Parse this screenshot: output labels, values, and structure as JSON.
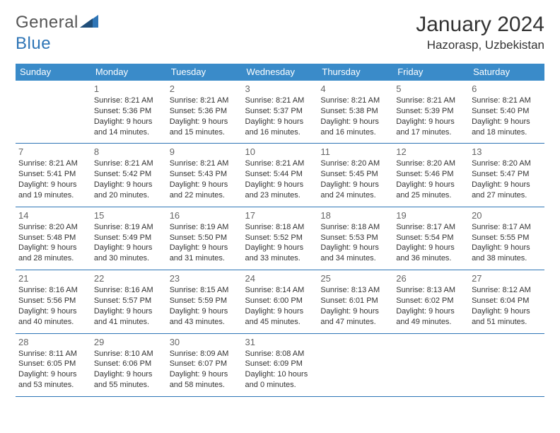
{
  "brand": {
    "part1": "General",
    "part2": "Blue"
  },
  "title": "January 2024",
  "location": "Hazorasp, Uzbekistan",
  "colors": {
    "header_bg": "#3a8bc9",
    "header_text": "#ffffff",
    "row_border": "#2e75b6",
    "body_bg": "#ffffff",
    "text": "#333333",
    "daynum": "#666666",
    "logo_gray": "#555555",
    "logo_blue": "#2e75b6"
  },
  "typography": {
    "title_fontsize": 30,
    "location_fontsize": 17,
    "dayheader_fontsize": 13,
    "daynum_fontsize": 13,
    "info_fontsize": 11
  },
  "day_headers": [
    "Sunday",
    "Monday",
    "Tuesday",
    "Wednesday",
    "Thursday",
    "Friday",
    "Saturday"
  ],
  "weeks": [
    [
      null,
      {
        "n": "1",
        "sr": "Sunrise: 8:21 AM",
        "ss": "Sunset: 5:36 PM",
        "d1": "Daylight: 9 hours",
        "d2": "and 14 minutes."
      },
      {
        "n": "2",
        "sr": "Sunrise: 8:21 AM",
        "ss": "Sunset: 5:36 PM",
        "d1": "Daylight: 9 hours",
        "d2": "and 15 minutes."
      },
      {
        "n": "3",
        "sr": "Sunrise: 8:21 AM",
        "ss": "Sunset: 5:37 PM",
        "d1": "Daylight: 9 hours",
        "d2": "and 16 minutes."
      },
      {
        "n": "4",
        "sr": "Sunrise: 8:21 AM",
        "ss": "Sunset: 5:38 PM",
        "d1": "Daylight: 9 hours",
        "d2": "and 16 minutes."
      },
      {
        "n": "5",
        "sr": "Sunrise: 8:21 AM",
        "ss": "Sunset: 5:39 PM",
        "d1": "Daylight: 9 hours",
        "d2": "and 17 minutes."
      },
      {
        "n": "6",
        "sr": "Sunrise: 8:21 AM",
        "ss": "Sunset: 5:40 PM",
        "d1": "Daylight: 9 hours",
        "d2": "and 18 minutes."
      }
    ],
    [
      {
        "n": "7",
        "sr": "Sunrise: 8:21 AM",
        "ss": "Sunset: 5:41 PM",
        "d1": "Daylight: 9 hours",
        "d2": "and 19 minutes."
      },
      {
        "n": "8",
        "sr": "Sunrise: 8:21 AM",
        "ss": "Sunset: 5:42 PM",
        "d1": "Daylight: 9 hours",
        "d2": "and 20 minutes."
      },
      {
        "n": "9",
        "sr": "Sunrise: 8:21 AM",
        "ss": "Sunset: 5:43 PM",
        "d1": "Daylight: 9 hours",
        "d2": "and 22 minutes."
      },
      {
        "n": "10",
        "sr": "Sunrise: 8:21 AM",
        "ss": "Sunset: 5:44 PM",
        "d1": "Daylight: 9 hours",
        "d2": "and 23 minutes."
      },
      {
        "n": "11",
        "sr": "Sunrise: 8:20 AM",
        "ss": "Sunset: 5:45 PM",
        "d1": "Daylight: 9 hours",
        "d2": "and 24 minutes."
      },
      {
        "n": "12",
        "sr": "Sunrise: 8:20 AM",
        "ss": "Sunset: 5:46 PM",
        "d1": "Daylight: 9 hours",
        "d2": "and 25 minutes."
      },
      {
        "n": "13",
        "sr": "Sunrise: 8:20 AM",
        "ss": "Sunset: 5:47 PM",
        "d1": "Daylight: 9 hours",
        "d2": "and 27 minutes."
      }
    ],
    [
      {
        "n": "14",
        "sr": "Sunrise: 8:20 AM",
        "ss": "Sunset: 5:48 PM",
        "d1": "Daylight: 9 hours",
        "d2": "and 28 minutes."
      },
      {
        "n": "15",
        "sr": "Sunrise: 8:19 AM",
        "ss": "Sunset: 5:49 PM",
        "d1": "Daylight: 9 hours",
        "d2": "and 30 minutes."
      },
      {
        "n": "16",
        "sr": "Sunrise: 8:19 AM",
        "ss": "Sunset: 5:50 PM",
        "d1": "Daylight: 9 hours",
        "d2": "and 31 minutes."
      },
      {
        "n": "17",
        "sr": "Sunrise: 8:18 AM",
        "ss": "Sunset: 5:52 PM",
        "d1": "Daylight: 9 hours",
        "d2": "and 33 minutes."
      },
      {
        "n": "18",
        "sr": "Sunrise: 8:18 AM",
        "ss": "Sunset: 5:53 PM",
        "d1": "Daylight: 9 hours",
        "d2": "and 34 minutes."
      },
      {
        "n": "19",
        "sr": "Sunrise: 8:17 AM",
        "ss": "Sunset: 5:54 PM",
        "d1": "Daylight: 9 hours",
        "d2": "and 36 minutes."
      },
      {
        "n": "20",
        "sr": "Sunrise: 8:17 AM",
        "ss": "Sunset: 5:55 PM",
        "d1": "Daylight: 9 hours",
        "d2": "and 38 minutes."
      }
    ],
    [
      {
        "n": "21",
        "sr": "Sunrise: 8:16 AM",
        "ss": "Sunset: 5:56 PM",
        "d1": "Daylight: 9 hours",
        "d2": "and 40 minutes."
      },
      {
        "n": "22",
        "sr": "Sunrise: 8:16 AM",
        "ss": "Sunset: 5:57 PM",
        "d1": "Daylight: 9 hours",
        "d2": "and 41 minutes."
      },
      {
        "n": "23",
        "sr": "Sunrise: 8:15 AM",
        "ss": "Sunset: 5:59 PM",
        "d1": "Daylight: 9 hours",
        "d2": "and 43 minutes."
      },
      {
        "n": "24",
        "sr": "Sunrise: 8:14 AM",
        "ss": "Sunset: 6:00 PM",
        "d1": "Daylight: 9 hours",
        "d2": "and 45 minutes."
      },
      {
        "n": "25",
        "sr": "Sunrise: 8:13 AM",
        "ss": "Sunset: 6:01 PM",
        "d1": "Daylight: 9 hours",
        "d2": "and 47 minutes."
      },
      {
        "n": "26",
        "sr": "Sunrise: 8:13 AM",
        "ss": "Sunset: 6:02 PM",
        "d1": "Daylight: 9 hours",
        "d2": "and 49 minutes."
      },
      {
        "n": "27",
        "sr": "Sunrise: 8:12 AM",
        "ss": "Sunset: 6:04 PM",
        "d1": "Daylight: 9 hours",
        "d2": "and 51 minutes."
      }
    ],
    [
      {
        "n": "28",
        "sr": "Sunrise: 8:11 AM",
        "ss": "Sunset: 6:05 PM",
        "d1": "Daylight: 9 hours",
        "d2": "and 53 minutes."
      },
      {
        "n": "29",
        "sr": "Sunrise: 8:10 AM",
        "ss": "Sunset: 6:06 PM",
        "d1": "Daylight: 9 hours",
        "d2": "and 55 minutes."
      },
      {
        "n": "30",
        "sr": "Sunrise: 8:09 AM",
        "ss": "Sunset: 6:07 PM",
        "d1": "Daylight: 9 hours",
        "d2": "and 58 minutes."
      },
      {
        "n": "31",
        "sr": "Sunrise: 8:08 AM",
        "ss": "Sunset: 6:09 PM",
        "d1": "Daylight: 10 hours",
        "d2": "and 0 minutes."
      },
      null,
      null,
      null
    ]
  ]
}
